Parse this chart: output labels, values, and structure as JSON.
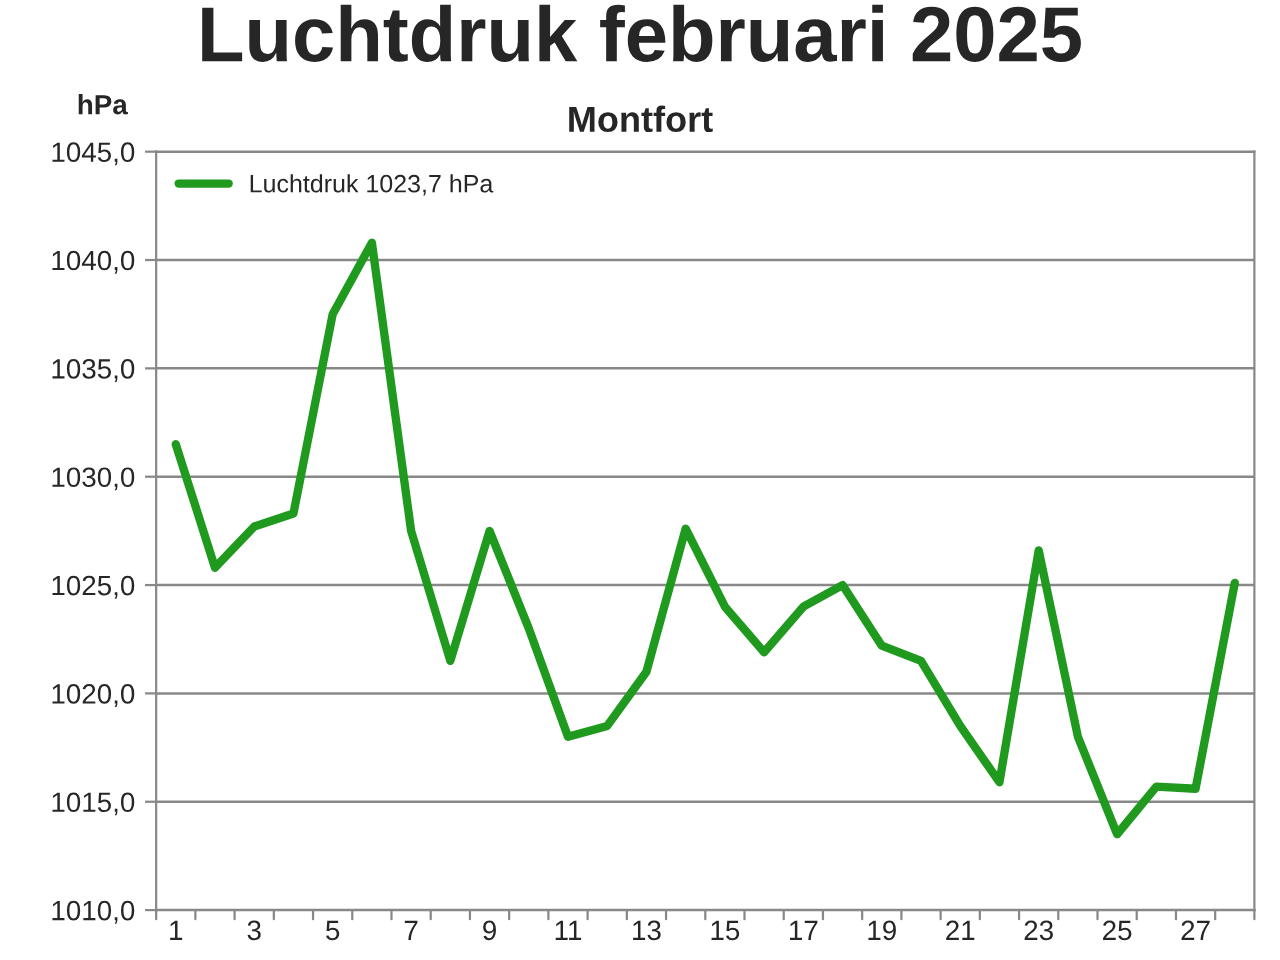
{
  "chart_data": {
    "type": "line",
    "title": "Luchtdruk februari 2025",
    "subtitle": "Montfort",
    "ylabel": "hPa",
    "categories": [
      "1",
      null,
      "3",
      null,
      "5",
      null,
      "7",
      null,
      "9",
      null,
      "11",
      null,
      "13",
      null,
      "15",
      null,
      "17",
      null,
      "19",
      null,
      "21",
      null,
      "23",
      null,
      "25",
      null,
      "27",
      null
    ],
    "series": [
      {
        "name": "Luchtdruk 1023,7 hPa",
        "color": "#1f9a1f",
        "values": [
          1031.5,
          1025.8,
          1027.7,
          1028.3,
          1037.5,
          1040.8,
          1027.5,
          1021.5,
          1027.5,
          1023.0,
          1018.0,
          1018.5,
          1021.0,
          1027.6,
          1024.0,
          1021.9,
          1024.0,
          1025.0,
          1022.2,
          1021.5,
          1018.5,
          1015.9,
          1026.6,
          1018.0,
          1013.5,
          1015.7,
          1015.6,
          1025.1
        ]
      }
    ],
    "ylim": [
      1010,
      1045
    ],
    "yticks": [
      {
        "value": 1010,
        "label": "1010,0"
      },
      {
        "value": 1015,
        "label": "1015,0"
      },
      {
        "value": 1020,
        "label": "1020,0"
      },
      {
        "value": 1025,
        "label": "1025,0"
      },
      {
        "value": 1030,
        "label": "1030,0"
      },
      {
        "value": 1035,
        "label": "1035,0"
      },
      {
        "value": 1040,
        "label": "1040,0"
      },
      {
        "value": 1045,
        "label": "1045,0"
      }
    ],
    "grid": "y",
    "legend": "top left",
    "marker": "none",
    "line_style": "solid"
  }
}
